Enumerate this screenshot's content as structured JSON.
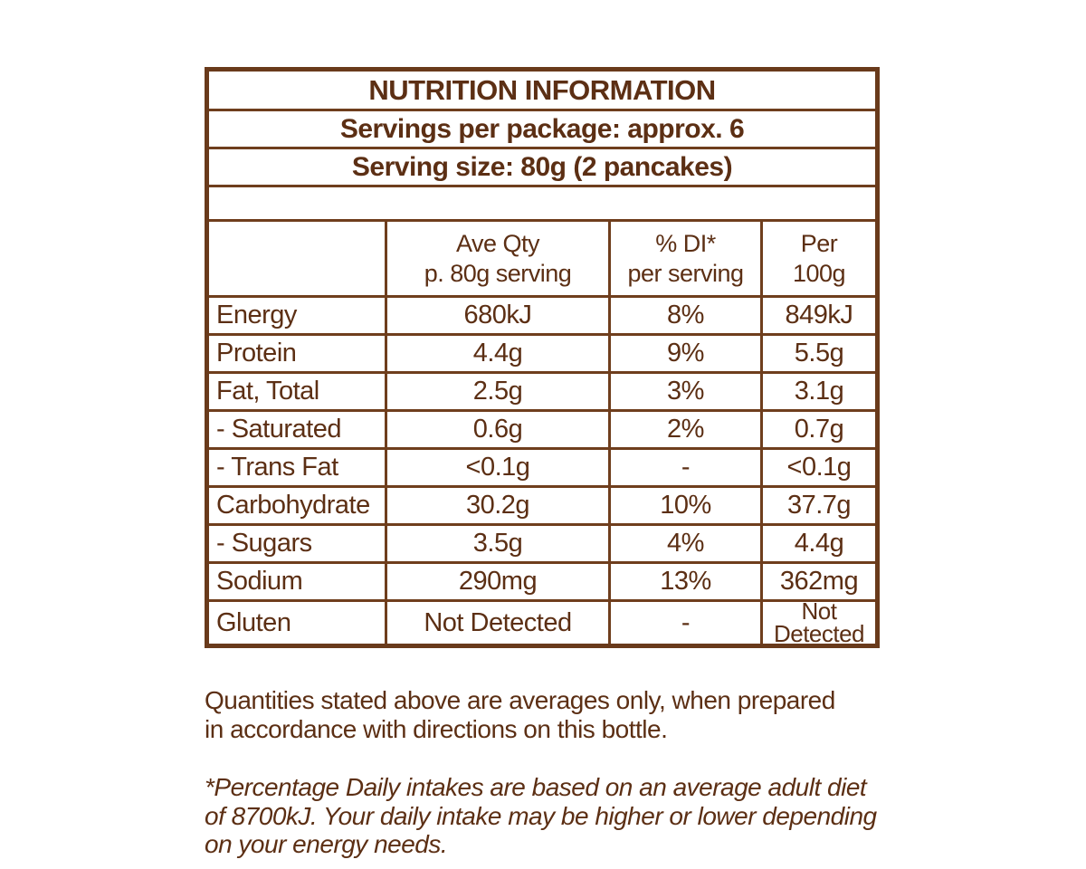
{
  "label": {
    "title": "NUTRITION INFORMATION",
    "servings_per_package": "Servings per package: approx. 6",
    "serving_size": "Serving size: 80g (2 pancakes)"
  },
  "table": {
    "columns": {
      "nutrient": "",
      "ave_qty": "Ave Qty\np. 80g serving",
      "di": "% DI*\nper serving",
      "per_100g": "Per\n100g"
    },
    "rows": [
      {
        "name": "Energy",
        "ave_qty": "680kJ",
        "di": "8%",
        "per_100g": "849kJ"
      },
      {
        "name": "Protein",
        "ave_qty": "4.4g",
        "di": "9%",
        "per_100g": "5.5g"
      },
      {
        "name": "Fat, Total",
        "ave_qty": "2.5g",
        "di": "3%",
        "per_100g": "3.1g"
      },
      {
        "name": "- Saturated",
        "ave_qty": "0.6g",
        "di": "2%",
        "per_100g": "0.7g"
      },
      {
        "name": "- Trans Fat",
        "ave_qty": "<0.1g",
        "di": "-",
        "per_100g": "<0.1g"
      },
      {
        "name": "Carbohydrate",
        "ave_qty": "30.2g",
        "di": "10%",
        "per_100g": "37.7g"
      },
      {
        "name": "- Sugars",
        "ave_qty": "3.5g",
        "di": "4%",
        "per_100g": "4.4g"
      },
      {
        "name": "Sodium",
        "ave_qty": "290mg",
        "di": "13%",
        "per_100g": "362mg"
      },
      {
        "name": "Gluten",
        "ave_qty": "Not Detected",
        "di": "-",
        "per_100g": "Not Detected"
      }
    ]
  },
  "footnotes": {
    "averages": "Quantities stated above are averages only, when prepared\nin accordance with directions on this bottle.",
    "daily_intake": "*Percentage Daily intakes are based on an average adult diet\nof 8700kJ. Your daily intake may be higher or lower depending\non your energy needs."
  },
  "colors": {
    "text": "#5C2F14",
    "border": "#6F3E1D",
    "background": "#FFFFFF"
  }
}
